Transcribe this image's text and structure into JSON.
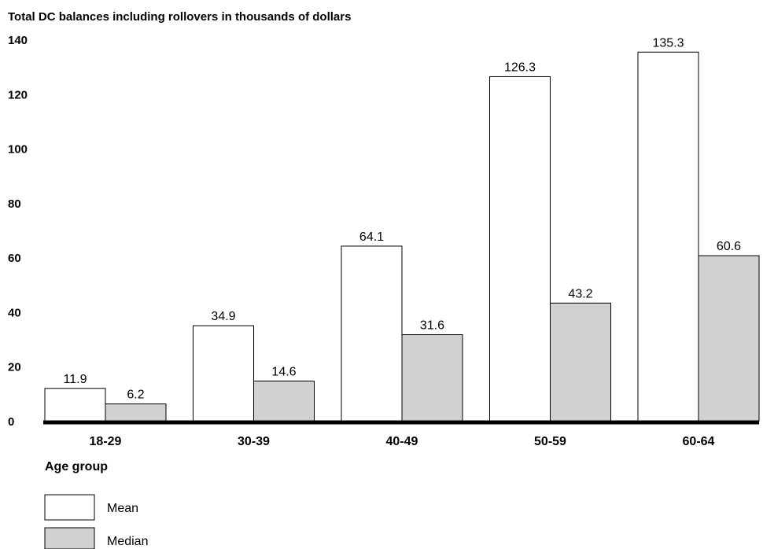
{
  "chart_data": {
    "type": "bar",
    "title": "Total DC balances including rollovers in thousands of dollars",
    "xlabel": "Age group",
    "ylabel": "",
    "categories": [
      "18-29",
      "30-39",
      "40-49",
      "50-59",
      "60-64"
    ],
    "series": [
      {
        "name": "Mean",
        "values": [
          11.9,
          34.9,
          64.1,
          126.3,
          135.3
        ],
        "labels": [
          "11.9",
          "34.9",
          "64.1",
          "126.3",
          "135.3"
        ],
        "color": "#ffffff"
      },
      {
        "name": "Median",
        "values": [
          6.2,
          14.6,
          31.6,
          43.2,
          60.6
        ],
        "labels": [
          "6.2",
          "14.6",
          "31.6",
          "43.2",
          "60.6"
        ],
        "color": "#d0d1d3"
      }
    ],
    "ylim": [
      0,
      140
    ],
    "yticks": [
      "0",
      "20",
      "40",
      "60",
      "80",
      "100",
      "120",
      "140"
    ],
    "grid": false,
    "legend": "bottom-left"
  }
}
